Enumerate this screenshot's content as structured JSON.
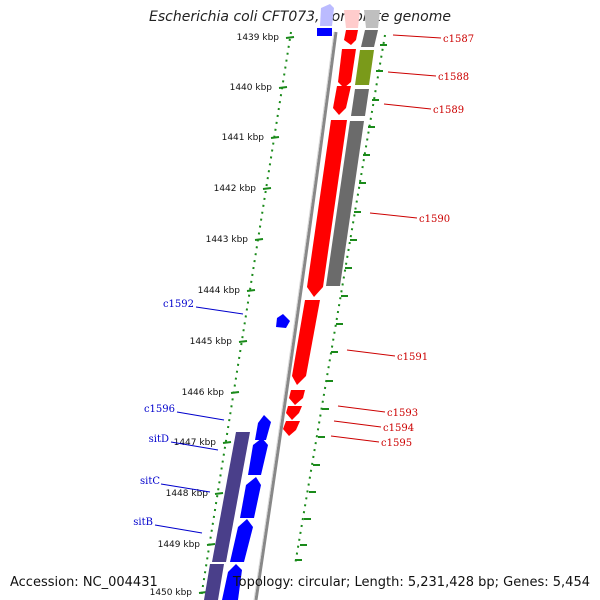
{
  "title": "Escherichia coli CFT073, complete genome",
  "accession": "Accession: NC_004431",
  "summary": "Topology: circular; Length: 5,231,428 bp; Genes: 5,454",
  "ticks": [
    "1439 kbp",
    "1440 kbp",
    "1441 kbp",
    "1442 kbp",
    "1443 kbp",
    "1444 kbp",
    "1445 kbp",
    "1446 kbp",
    "1447 kbp",
    "1448 kbp",
    "1449 kbp",
    "1450 kbp"
  ],
  "genes_reverse": [
    "c1587",
    "c1588",
    "c1589",
    "c1590",
    "c1591",
    "c1593",
    "c1594",
    "c1595"
  ],
  "genes_forward": [
    "c1592",
    "c1596",
    "sitD",
    "sitC",
    "sitB"
  ],
  "colors": {
    "reverse_cds": "#ff0000",
    "forward_cds": "#0000ff",
    "reverse_label": "#cc0000",
    "forward_label": "#0000cc",
    "gray_feature": "#6b6b6b",
    "olive_feature": "#7a9a1a",
    "purple_feature": "#4a3f8a",
    "tick_green": "#1a8a1a",
    "backbone": "#888888"
  }
}
